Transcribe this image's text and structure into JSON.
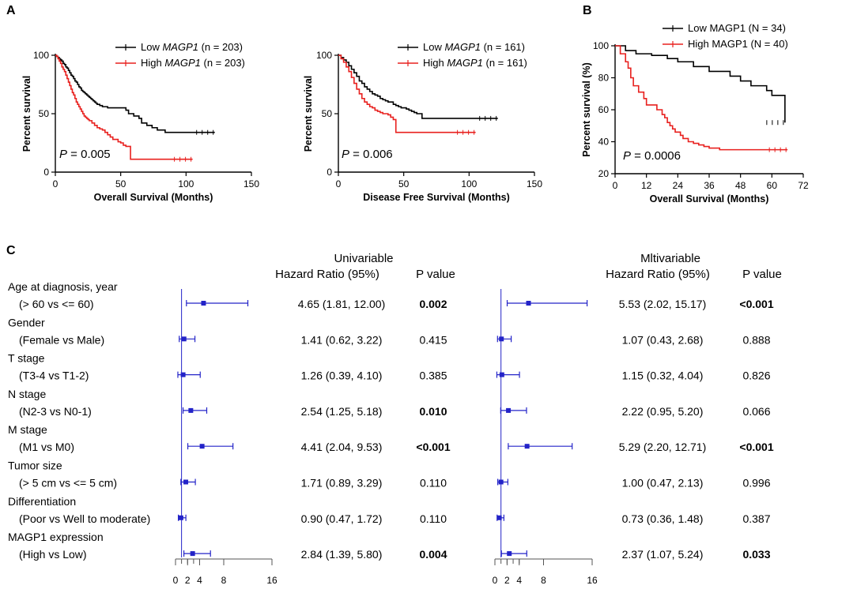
{
  "panels": {
    "A": "A",
    "B": "B",
    "C": "C"
  },
  "colors": {
    "low": "#000000",
    "high": "#e8201e",
    "forest": "#2323c8"
  },
  "chart_data": [
    {
      "id": "km_os",
      "type": "line",
      "title": "",
      "xlabel": "Overall Survival (Months)",
      "ylabel": "Percent survival",
      "xlim": [
        0,
        150
      ],
      "ylim": [
        0,
        100
      ],
      "xticks": [
        "0",
        "50",
        "100",
        "150"
      ],
      "yticks": [
        "0",
        "50",
        "100"
      ],
      "annotation_p": "P",
      "annotation_val": " = 0.005",
      "legend": [
        {
          "pre": "Low ",
          "gene": "MAGP1",
          "post": " (n = 203)"
        },
        {
          "pre": "High ",
          "gene": "MAGP1",
          "post": " (n = 203)"
        }
      ],
      "series": [
        {
          "name": "Low MAGP1 (n = 203)",
          "color": "#000000",
          "x": [
            0,
            1,
            2,
            3,
            4,
            5,
            6,
            7,
            8,
            9,
            10,
            11,
            12,
            13,
            14,
            15,
            16,
            17,
            18,
            19,
            20,
            21,
            22,
            23,
            24,
            25,
            26,
            27,
            28,
            29,
            30,
            31,
            32,
            34,
            36,
            38,
            40,
            42,
            44,
            46,
            48,
            50,
            52,
            54,
            56,
            58,
            60,
            62,
            64,
            66,
            68,
            70,
            72,
            74,
            76,
            78,
            80,
            82,
            84,
            86,
            90,
            95,
            100,
            110,
            122
          ],
          "y": [
            100,
            99,
            98,
            97,
            96,
            95,
            93,
            92,
            90,
            89,
            87,
            85,
            83,
            82,
            80,
            78,
            77,
            75,
            73,
            72,
            70,
            69,
            68,
            67,
            66,
            65,
            64,
            63,
            62,
            61,
            60,
            59,
            58,
            57,
            56,
            56,
            55,
            55,
            55,
            55,
            55,
            55,
            55,
            53,
            50,
            50,
            48,
            48,
            46,
            42,
            42,
            40,
            40,
            38,
            38,
            36,
            36,
            36,
            34,
            34,
            34,
            34,
            34,
            34,
            34
          ]
        },
        {
          "name": "High MAGP1 (n = 203)",
          "color": "#e8201e",
          "x": [
            0,
            1,
            2,
            3,
            4,
            5,
            6,
            7,
            8,
            9,
            10,
            11,
            12,
            13,
            14,
            15,
            16,
            17,
            18,
            19,
            20,
            21,
            22,
            23,
            24,
            25,
            26,
            28,
            30,
            32,
            34,
            36,
            38,
            40,
            42,
            44,
            46,
            48,
            50,
            52,
            54,
            56,
            57,
            57.5,
            60,
            70,
            80,
            90,
            100,
            105
          ],
          "y": [
            100,
            99,
            97,
            95,
            93,
            90,
            88,
            86,
            83,
            80,
            77,
            74,
            71,
            68,
            66,
            63,
            60,
            58,
            56,
            54,
            52,
            50,
            48,
            47,
            46,
            45,
            44,
            42,
            40,
            38,
            37,
            36,
            34,
            32,
            30,
            28,
            28,
            26,
            25,
            23,
            22,
            22,
            22,
            11,
            11,
            11,
            11,
            11,
            11,
            11
          ]
        }
      ]
    },
    {
      "id": "km_dfs",
      "type": "line",
      "title": "",
      "xlabel": "Disease Free Survival (Months)",
      "ylabel": "Percent survival",
      "xlim": [
        0,
        150
      ],
      "ylim": [
        0,
        100
      ],
      "xticks": [
        "0",
        "50",
        "100",
        "150"
      ],
      "yticks": [
        "0",
        "50",
        "100"
      ],
      "annotation_p": "P",
      "annotation_val": " = 0.006",
      "legend": [
        {
          "pre": "Low ",
          "gene": "MAGP1",
          "post": " (n = 161)"
        },
        {
          "pre": "High ",
          "gene": "MAGP1",
          "post": " (n = 161)"
        }
      ],
      "series": [
        {
          "name": "Low MAGP1 (n = 161)",
          "color": "#000000",
          "x": [
            0,
            2,
            4,
            6,
            8,
            10,
            12,
            14,
            16,
            18,
            20,
            22,
            24,
            26,
            28,
            30,
            32,
            34,
            36,
            38,
            40,
            42,
            44,
            46,
            48,
            50,
            52,
            54,
            56,
            58,
            60,
            62,
            64,
            66,
            70,
            80,
            90,
            100,
            110,
            122
          ],
          "y": [
            100,
            98,
            96,
            94,
            91,
            88,
            85,
            82,
            78,
            76,
            73,
            71,
            69,
            67,
            66,
            65,
            63,
            62,
            61,
            60,
            60,
            58,
            57,
            56,
            55,
            55,
            54,
            53,
            52,
            51,
            50,
            50,
            46,
            46,
            46,
            46,
            46,
            46,
            46,
            46
          ]
        },
        {
          "name": "High MAGP1 (n = 161)",
          "color": "#e8201e",
          "x": [
            0,
            2,
            4,
            6,
            8,
            10,
            12,
            14,
            16,
            18,
            20,
            22,
            24,
            26,
            28,
            30,
            32,
            34,
            36,
            38,
            40,
            42,
            43,
            44,
            50,
            60,
            70,
            80,
            90,
            100,
            105
          ],
          "y": [
            100,
            97,
            94,
            90,
            86,
            81,
            76,
            71,
            67,
            63,
            60,
            58,
            56,
            55,
            53,
            52,
            51,
            50,
            50,
            49,
            47,
            45,
            45,
            34,
            34,
            34,
            34,
            34,
            34,
            34,
            34
          ]
        }
      ]
    },
    {
      "id": "km_b",
      "type": "line",
      "title": "",
      "xlabel": "Overall Survival (Months)",
      "ylabel": "Percent survival (%)",
      "xlim": [
        0,
        72
      ],
      "ylim": [
        20,
        100
      ],
      "xticks": [
        "0",
        "12",
        "24",
        "36",
        "48",
        "60",
        "72"
      ],
      "yticks": [
        "20",
        "40",
        "60",
        "80",
        "100"
      ],
      "annotation_p": "P",
      "annotation_val": " = 0.0006",
      "legend": [
        {
          "pre": "Low MAGP1 (N = 34)",
          "gene": "",
          "post": ""
        },
        {
          "pre": "High MAGP1 (N = 40)",
          "gene": "",
          "post": ""
        }
      ],
      "series": [
        {
          "name": "Low MAGP1 (N = 34)",
          "color": "#000000",
          "x": [
            0,
            2,
            4,
            4,
            8,
            8,
            14,
            14,
            20,
            20,
            24,
            24,
            30,
            30,
            36,
            36,
            44,
            44,
            48,
            48,
            52,
            52,
            58,
            58,
            60,
            60,
            65,
            65
          ],
          "y": [
            100,
            100,
            100,
            97,
            97,
            95,
            95,
            94,
            94,
            92,
            92,
            90,
            90,
            87,
            87,
            84,
            84,
            81,
            81,
            78,
            78,
            75,
            75,
            72,
            72,
            69,
            69,
            52
          ]
        },
        {
          "name": "High MAGP1 (N = 40)",
          "color": "#e8201e",
          "x": [
            0,
            2,
            2,
            4,
            4,
            5,
            5,
            6,
            6,
            7,
            7,
            9,
            9,
            11,
            11,
            12,
            12,
            16,
            16,
            18,
            18,
            19,
            19,
            20,
            20,
            21,
            21,
            22,
            22,
            23,
            23,
            25,
            25,
            26,
            26,
            28,
            28,
            30,
            30,
            32,
            32,
            34,
            34,
            36,
            36,
            40,
            40,
            50,
            60,
            66
          ],
          "y": [
            100,
            100,
            95,
            95,
            90,
            90,
            86,
            86,
            80,
            80,
            75,
            75,
            71,
            71,
            67,
            67,
            63,
            63,
            60,
            60,
            57,
            57,
            55,
            55,
            52,
            52,
            50,
            50,
            48,
            48,
            46,
            46,
            44,
            44,
            42,
            42,
            40,
            40,
            39,
            39,
            38,
            38,
            37,
            37,
            36,
            36,
            35,
            35,
            35,
            35
          ]
        }
      ]
    },
    {
      "id": "forest_uni",
      "type": "forest",
      "xticks": [
        "0",
        "2",
        "4",
        "8",
        "16"
      ],
      "points": [
        {
          "hr": 4.65,
          "lo": 1.81,
          "hi": 12.0
        },
        {
          "hr": 1.41,
          "lo": 0.62,
          "hi": 3.22
        },
        {
          "hr": 1.26,
          "lo": 0.39,
          "hi": 4.1
        },
        {
          "hr": 2.54,
          "lo": 1.25,
          "hi": 5.18
        },
        {
          "hr": 4.41,
          "lo": 2.04,
          "hi": 9.53
        },
        {
          "hr": 1.71,
          "lo": 0.89,
          "hi": 3.29
        },
        {
          "hr": 0.9,
          "lo": 0.47,
          "hi": 1.72
        },
        {
          "hr": 2.84,
          "lo": 1.39,
          "hi": 5.8
        }
      ]
    },
    {
      "id": "forest_multi",
      "type": "forest",
      "xticks": [
        "0",
        "2",
        "4",
        "8",
        "16"
      ],
      "points": [
        {
          "hr": 5.53,
          "lo": 2.02,
          "hi": 15.17
        },
        {
          "hr": 1.07,
          "lo": 0.43,
          "hi": 2.68
        },
        {
          "hr": 1.15,
          "lo": 0.32,
          "hi": 4.04
        },
        {
          "hr": 2.22,
          "lo": 0.95,
          "hi": 5.2
        },
        {
          "hr": 5.29,
          "lo": 2.2,
          "hi": 12.71
        },
        {
          "hr": 1.0,
          "lo": 0.47,
          "hi": 2.13
        },
        {
          "hr": 0.73,
          "lo": 0.36,
          "hi": 1.48
        },
        {
          "hr": 2.37,
          "lo": 1.07,
          "hi": 5.24
        }
      ]
    }
  ],
  "forest_table": {
    "uni_title": "Univariable",
    "uni_hr_header": "Hazard Ratio (95%)",
    "uni_p_header": "P value",
    "multi_title": "Mltivariable",
    "multi_hr_header": "Hazard Ratio (95%)",
    "multi_p_header": "P value",
    "rows": [
      {
        "label": "Age at diagnosis, year",
        "sub": "(> 60 vs <= 60)",
        "uni_hr": "4.65 (1.81, 12.00)",
        "uni_p": "0.002",
        "uni_bold": true,
        "multi_hr": "5.53 (2.02, 15.17)",
        "multi_p": "<0.001",
        "multi_bold": true
      },
      {
        "label": "Gender",
        "sub": "(Female vs Male)",
        "uni_hr": "1.41 (0.62, 3.22)",
        "uni_p": "0.415",
        "uni_bold": false,
        "multi_hr": "1.07 (0.43, 2.68)",
        "multi_p": "0.888",
        "multi_bold": false
      },
      {
        "label": "T stage",
        "sub": "(T3-4 vs T1-2)",
        "uni_hr": "1.26 (0.39, 4.10)",
        "uni_p": "0.385",
        "uni_bold": false,
        "multi_hr": "1.15 (0.32, 4.04)",
        "multi_p": "0.826",
        "multi_bold": false
      },
      {
        "label": "N stage",
        "sub": "(N2-3 vs N0-1)",
        "uni_hr": "2.54 (1.25, 5.18)",
        "uni_p": "0.010",
        "uni_bold": true,
        "multi_hr": "2.22 (0.95, 5.20)",
        "multi_p": "0.066",
        "multi_bold": false
      },
      {
        "label": "M stage",
        "sub": "(M1 vs M0)",
        "uni_hr": "4.41 (2.04, 9.53)",
        "uni_p": "<0.001",
        "uni_bold": true,
        "multi_hr": "5.29 (2.20, 12.71)",
        "multi_p": "<0.001",
        "multi_bold": true
      },
      {
        "label": "Tumor size",
        "sub": "(> 5 cm vs <= 5 cm)",
        "uni_hr": "1.71 (0.89, 3.29)",
        "uni_p": "0.110",
        "uni_bold": false,
        "multi_hr": "1.00 (0.47, 2.13)",
        "multi_p": "0.996",
        "multi_bold": false
      },
      {
        "label": "Differentiation",
        "sub": "(Poor vs Well to moderate)",
        "uni_hr": "0.90 (0.47, 1.72)",
        "uni_p": "0.110",
        "uni_bold": false,
        "multi_hr": "0.73 (0.36, 1.48)",
        "multi_p": "0.387",
        "multi_bold": false
      },
      {
        "label": "MAGP1 expression",
        "sub": "(High vs Low)",
        "uni_hr": "2.84 (1.39, 5.80)",
        "uni_p": "0.004",
        "uni_bold": true,
        "multi_hr": "2.37 (1.07, 5.24)",
        "multi_p": "0.033",
        "multi_bold": true
      }
    ]
  }
}
